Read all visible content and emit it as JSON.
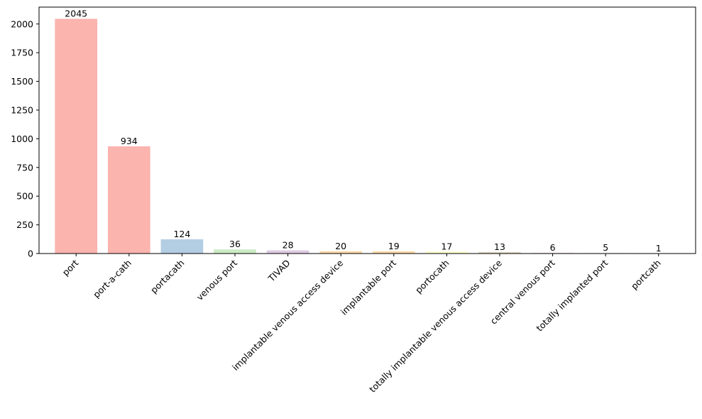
{
  "chart_data": {
    "type": "bar",
    "title": "",
    "xlabel": "",
    "ylabel": "",
    "categories": [
      "port",
      "port-a-cath",
      "portacath",
      "venous port",
      "TIVAD",
      "implantable venous access device",
      "implantable port",
      "portocath",
      "totally implantable venous access device",
      "central venous port",
      "totally implanted port",
      "portcath"
    ],
    "values": [
      2045,
      934,
      124,
      36,
      28,
      20,
      19,
      17,
      13,
      6,
      5,
      1
    ],
    "data_labels": [
      "2045",
      "934",
      "124",
      "36",
      "28",
      "20",
      "19",
      "17",
      "13",
      "6",
      "5",
      "1"
    ],
    "colors": [
      "#fbb4ae",
      "#fbb4ae",
      "#b3cde3",
      "#ccebc5",
      "#decbe4",
      "#fed9a6",
      "#fed9a6",
      "#ffffcc",
      "#e5d8bd",
      "#fddaec",
      "#f2f2f2",
      "#b3cde3"
    ],
    "ylim": [
      0,
      2147
    ],
    "yticks": [
      0,
      250,
      500,
      750,
      1000,
      1250,
      1500,
      1750,
      2000
    ],
    "ytick_labels": [
      "0",
      "250",
      "500",
      "750",
      "1000",
      "1250",
      "1500",
      "1750",
      "2000"
    ],
    "grid": false,
    "legend": "none"
  }
}
